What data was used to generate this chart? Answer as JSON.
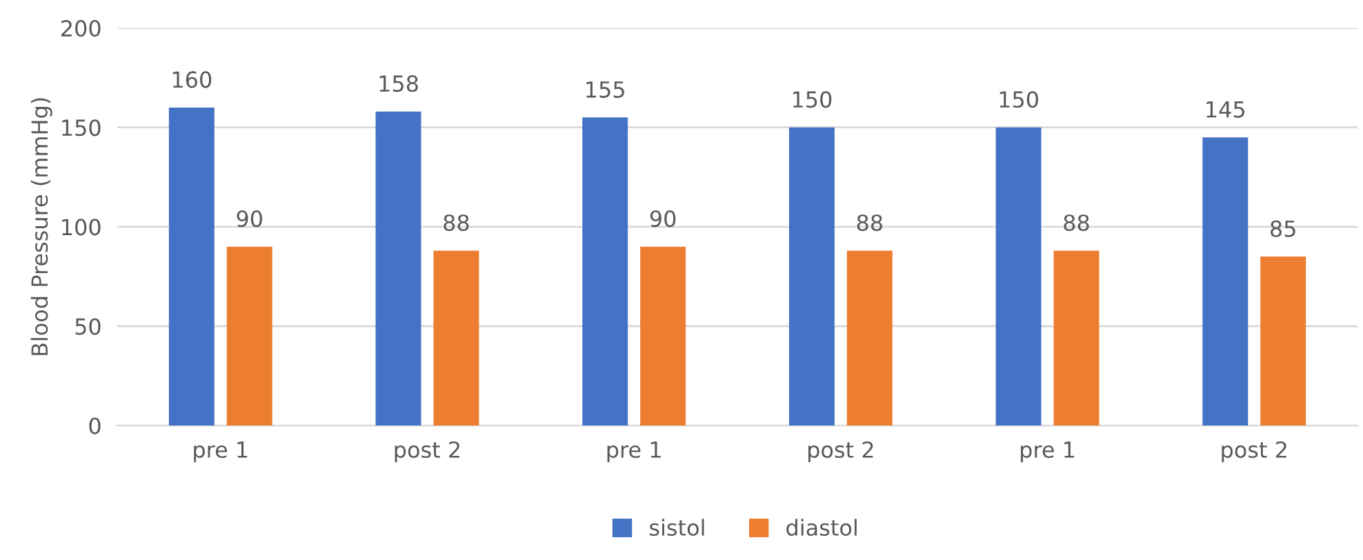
{
  "chart_data": {
    "type": "bar",
    "ylabel": "Blood Pressure (mmHg)",
    "categories": [
      "pre 1",
      "post 2",
      "pre 1",
      "post 2",
      "pre 1",
      "post 2"
    ],
    "series": [
      {
        "name": "sistol",
        "color": "#4472c4",
        "values": [
          160,
          158,
          155,
          150,
          150,
          145
        ]
      },
      {
        "name": "diastol",
        "color": "#ed7d31",
        "values": [
          90,
          88,
          90,
          88,
          88,
          85
        ]
      }
    ],
    "ylim": [
      0,
      200
    ],
    "yticks": [
      0,
      50,
      100,
      150,
      200
    ],
    "grid": "y",
    "legend": "bottom",
    "data_labels": true
  }
}
